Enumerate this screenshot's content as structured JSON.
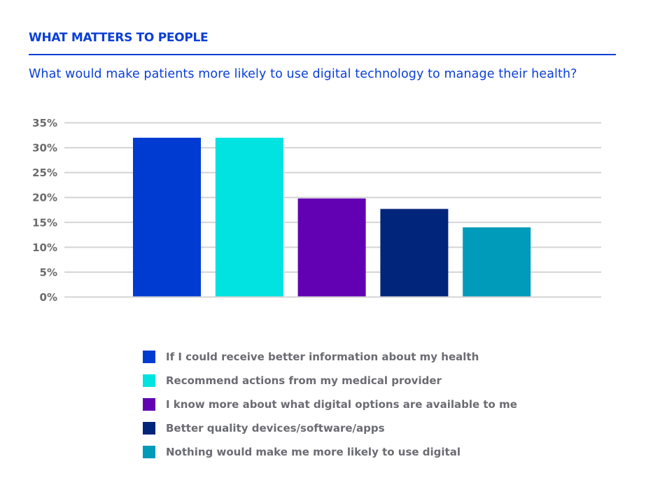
{
  "header": {
    "section_title": "WHAT MATTERS TO PEOPLE",
    "question": "What would make patients more likely to use digital technology to manage their health?"
  },
  "colors": {
    "accent": "#0a3fd6",
    "gridline": "#d4d4d4",
    "tick_text": "#6b6b6b"
  },
  "chart_data": {
    "type": "bar",
    "title": "What would make patients more likely to use digital technology to manage their health?",
    "xlabel": "",
    "ylabel": "",
    "ylim": [
      0,
      35
    ],
    "yticks": [
      0,
      5,
      10,
      15,
      20,
      25,
      30,
      35
    ],
    "ytick_labels": [
      "0%",
      "5%",
      "10%",
      "15%",
      "20%",
      "25%",
      "30%",
      "35%"
    ],
    "grid": true,
    "legend_position": "bottom",
    "categories": [
      "If I could receive better information about my health",
      "Recommend actions from my medical provider",
      "I know more about what digital options are available to me",
      "Better quality devices/software/apps",
      "Nothing would make me more likely to use digital"
    ],
    "values": [
      32,
      32,
      19.8,
      17.7,
      14
    ],
    "colors": [
      "#003bd1",
      "#00e3e0",
      "#6200b3",
      "#00257a",
      "#009aba"
    ]
  }
}
